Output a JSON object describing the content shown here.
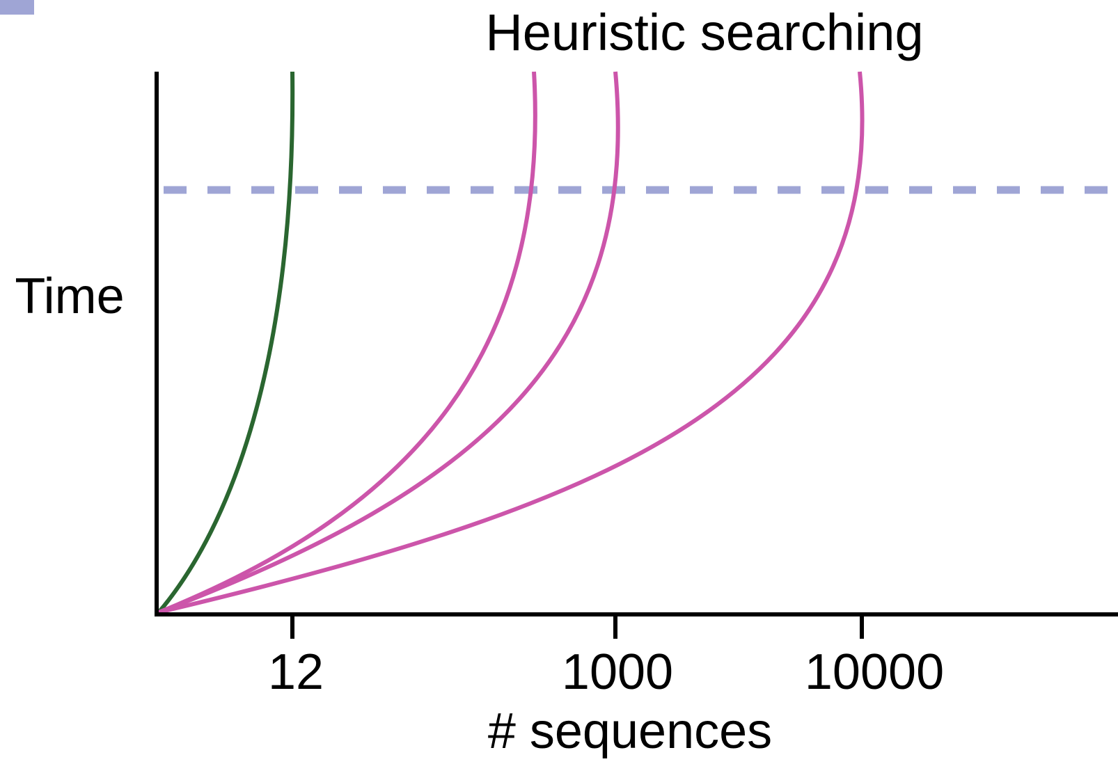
{
  "title": "Heuristic searching",
  "y_axis": {
    "label": "Time"
  },
  "x_axis": {
    "label": "# sequences",
    "tick_labels": [
      "12",
      "1000",
      "10000"
    ]
  }
}
